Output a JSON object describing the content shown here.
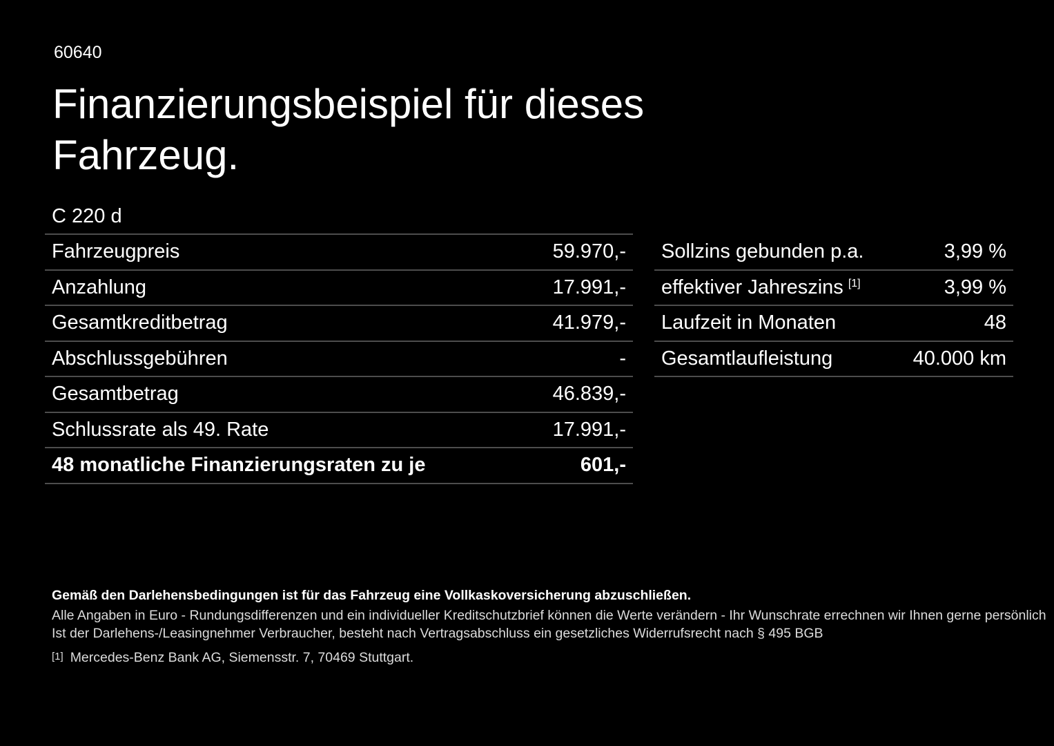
{
  "page": {
    "doc_id": "60640",
    "heading": "Finanzierungsbeispiel für dieses Fahrzeug.",
    "vehicle_model": "C 220 d"
  },
  "finance_table": {
    "rows": [
      {
        "label": "Fahrzeugpreis",
        "value": "59.970,-"
      },
      {
        "label": "Anzahlung",
        "value": "17.991,-"
      },
      {
        "label": "Gesamtkreditbetrag",
        "value": "41.979,-"
      },
      {
        "label": "Abschlussgebühren",
        "value": "-"
      },
      {
        "label": "Gesamtbetrag",
        "value": "46.839,-"
      },
      {
        "label": "Schlussrate als 49. Rate",
        "value": "17.991,-"
      },
      {
        "label": "48 monatliche Finanzierungsraten zu je",
        "value": "601,-"
      }
    ]
  },
  "conditions_table": {
    "rows": [
      {
        "label": "Sollzins gebunden p.a.",
        "value": "3,99 %"
      },
      {
        "label": "effektiver Jahreszins",
        "sup": "[1]",
        "value": "3,99 %"
      },
      {
        "label": "Laufzeit in Monaten",
        "value": "48"
      },
      {
        "label": "Gesamtlaufleistung",
        "value": "40.000 km"
      }
    ]
  },
  "footer": {
    "bold_note": "Gemäß den Darlehensbedingungen ist für das Fahrzeug eine Vollkaskoversicherung abzuschließen.",
    "note_line1": "Alle Angaben in Euro - Rundungsdifferenzen und ein individueller Kreditschutzbrief können die Werte verändern - Ihr Wunschrate errechnen wir Ihnen gerne persönlich",
    "note_line2": "Ist der Darlehens-/Leasingnehmer Verbraucher, besteht nach Vertragsabschluss ein gesetzliches Widerrufsrecht nach § 495 BGB",
    "footnote_marker": "[1]",
    "footnote_text": "Mercedes-Benz Bank AG, Siemensstr. 7, 70469 Stuttgart."
  },
  "colors": {
    "background": "#000000",
    "text": "#ffffff",
    "footer_text": "#dcdcdc",
    "divider": "#4d4d4d"
  }
}
